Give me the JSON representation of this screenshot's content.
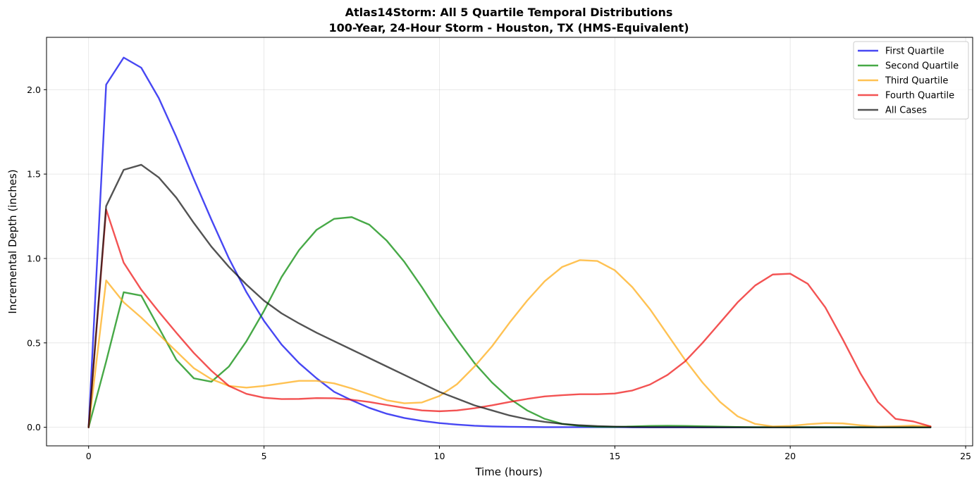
{
  "chart_data": {
    "type": "line",
    "title": "Atlas14Storm: All 5 Quartile Temporal Distributions",
    "subtitle": "100-Year, 24-Hour Storm - Houston, TX (HMS-Equivalent)",
    "xlabel": "Time (hours)",
    "ylabel": "Incremental Depth (inches)",
    "xlim": [
      -1.2,
      25.2
    ],
    "ylim": [
      -0.11,
      2.31
    ],
    "x_ticks": [
      0,
      5,
      10,
      15,
      20,
      25
    ],
    "x_tick_labels": [
      "0",
      "5",
      "10",
      "15",
      "20",
      "25"
    ],
    "y_ticks": [
      0.0,
      0.5,
      1.0,
      1.5,
      2.0
    ],
    "y_tick_labels": [
      "0.0",
      "0.5",
      "1.0",
      "1.5",
      "2.0"
    ],
    "grid": true,
    "legend_position": "top-right",
    "x": [
      0,
      0.5,
      1,
      1.5,
      2,
      2.5,
      3,
      3.5,
      4,
      4.5,
      5,
      5.5,
      6,
      6.5,
      7,
      7.5,
      8,
      8.5,
      9,
      9.5,
      10,
      10.5,
      11,
      11.5,
      12,
      12.5,
      13,
      13.5,
      14,
      14.5,
      15,
      15.5,
      16,
      16.5,
      17,
      17.5,
      18,
      18.5,
      19,
      19.5,
      20,
      20.5,
      21,
      21.5,
      22,
      22.5,
      23,
      23.5,
      24
    ],
    "series": [
      {
        "name": "First Quartile",
        "color": "#0000ee",
        "values": [
          0,
          2.03,
          2.19,
          2.13,
          1.95,
          1.72,
          1.47,
          1.23,
          1.0,
          0.8,
          0.63,
          0.49,
          0.38,
          0.29,
          0.21,
          0.16,
          0.115,
          0.08,
          0.055,
          0.038,
          0.025,
          0.016,
          0.009,
          0.005,
          0.003,
          0.002,
          0.001,
          0.001,
          0.001,
          0.001,
          0.001,
          0,
          0,
          0,
          0,
          0,
          0,
          0,
          0,
          0,
          0,
          0,
          0,
          0,
          0,
          0,
          0,
          0,
          0
        ]
      },
      {
        "name": "Second Quartile",
        "color": "#008800",
        "values": [
          0,
          0.39,
          0.8,
          0.78,
          0.59,
          0.4,
          0.29,
          0.27,
          0.36,
          0.51,
          0.69,
          0.89,
          1.05,
          1.17,
          1.235,
          1.245,
          1.2,
          1.105,
          0.98,
          0.83,
          0.67,
          0.52,
          0.38,
          0.265,
          0.17,
          0.1,
          0.05,
          0.02,
          0.008,
          0.003,
          0.002,
          0.005,
          0.008,
          0.009,
          0.008,
          0.006,
          0.004,
          0.002,
          0.001,
          0.001,
          0.001,
          0.001,
          0.001,
          0.001,
          0.001,
          0,
          0,
          0,
          0
        ]
      },
      {
        "name": "Third Quartile",
        "color": "#ffaa11",
        "values": [
          0,
          0.87,
          0.74,
          0.65,
          0.55,
          0.45,
          0.35,
          0.285,
          0.245,
          0.235,
          0.245,
          0.26,
          0.275,
          0.275,
          0.26,
          0.23,
          0.195,
          0.16,
          0.142,
          0.147,
          0.185,
          0.255,
          0.36,
          0.48,
          0.62,
          0.75,
          0.865,
          0.95,
          0.99,
          0.985,
          0.93,
          0.83,
          0.7,
          0.55,
          0.4,
          0.265,
          0.15,
          0.065,
          0.02,
          0.005,
          0.008,
          0.018,
          0.025,
          0.023,
          0.012,
          0.004,
          0.006,
          0.01,
          0.005
        ]
      },
      {
        "name": "Fourth Quartile",
        "color": "#ee1111",
        "values": [
          0,
          1.29,
          0.975,
          0.815,
          0.685,
          0.56,
          0.44,
          0.335,
          0.245,
          0.198,
          0.175,
          0.167,
          0.168,
          0.173,
          0.172,
          0.163,
          0.15,
          0.132,
          0.115,
          0.1,
          0.095,
          0.1,
          0.113,
          0.13,
          0.15,
          0.168,
          0.183,
          0.19,
          0.196,
          0.196,
          0.2,
          0.218,
          0.253,
          0.31,
          0.39,
          0.5,
          0.62,
          0.74,
          0.84,
          0.905,
          0.91,
          0.85,
          0.71,
          0.52,
          0.32,
          0.15,
          0.05,
          0.035,
          0.005
        ]
      },
      {
        "name": "All Cases",
        "color": "#111111",
        "values": [
          0,
          1.31,
          1.525,
          1.555,
          1.48,
          1.36,
          1.21,
          1.07,
          0.95,
          0.845,
          0.75,
          0.675,
          0.615,
          0.56,
          0.51,
          0.46,
          0.41,
          0.36,
          0.31,
          0.26,
          0.21,
          0.17,
          0.13,
          0.1,
          0.07,
          0.048,
          0.032,
          0.02,
          0.012,
          0.007,
          0.004,
          0.002,
          0.001,
          0.001,
          0.001,
          0,
          0,
          0,
          0,
          0,
          0,
          0,
          0,
          0,
          0,
          0,
          0,
          0,
          0
        ]
      }
    ]
  }
}
